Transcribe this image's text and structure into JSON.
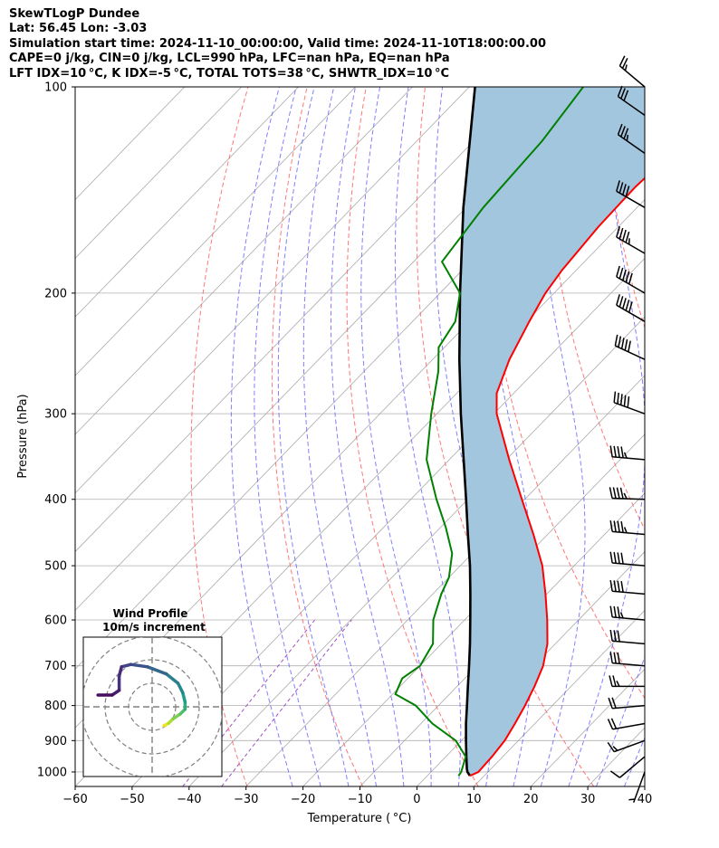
{
  "header": {
    "line1": "SkewTLogP Dundee",
    "line2": "Lat: 56.45   Lon: -3.03",
    "line3": "Simulation start time: 2024-11-10_00:00:00, Valid time: 2024-11-10T18:00:00.00",
    "line4": "CAPE=0 j/kg, CIN=0 j/kg, LCL=990 hPa, LFC=nan hPa, EQ=nan hPa",
    "line5": "LFT IDX=10 °C, K IDX=-5 °C, TOTAL TOTS=38 °C, SHWTR_IDX=10 °C"
  },
  "chart_data": {
    "type": "line",
    "xlabel": "Temperature ( °C)",
    "ylabel": "Pressure (hPa)",
    "xlim": [
      -60,
      40
    ],
    "ylim": [
      1050,
      100
    ],
    "x_ticks": [
      -60,
      -50,
      -40,
      -30,
      -20,
      -10,
      0,
      10,
      20,
      30,
      40
    ],
    "y_ticks": [
      1000,
      900,
      800,
      700,
      600,
      500,
      400,
      300,
      200,
      100
    ],
    "y_scale": "log",
    "grid": true,
    "colors": {
      "temperature": "#ff0000",
      "dewpoint": "#008000",
      "parcel": "#000000",
      "cape_fill": "#a3c6df",
      "dry_adiabat": "#ff6060",
      "moist_adiabat": "#6060ff",
      "mixing_ratio": "#a050c0",
      "isotherm": "#aaaaaa"
    },
    "series": [
      {
        "key": "temperature",
        "p": [
          1013,
          1000,
          950,
          900,
          850,
          800,
          750,
          700,
          650,
          600,
          550,
          500,
          450,
          400,
          350,
          300,
          280,
          250,
          220,
          200,
          185,
          160,
          140,
          120,
          110,
          100
        ],
        "value": [
          7.5,
          8.3,
          8.1,
          7.6,
          6.5,
          5.2,
          3.6,
          1.6,
          -1.4,
          -5.5,
          -10.2,
          -15.6,
          -22.5,
          -30.5,
          -39.5,
          -49.5,
          -53,
          -56.5,
          -59.5,
          -61.5,
          -62.5,
          -63.5,
          -63.8,
          -63.0,
          -62.0,
          -61.0
        ]
      },
      {
        "key": "dewpoint",
        "p": [
          1013,
          1000,
          950,
          900,
          850,
          800,
          770,
          730,
          700,
          650,
          600,
          550,
          520,
          480,
          440,
          400,
          350,
          300,
          260,
          240,
          220,
          200,
          180,
          150,
          120,
          100
        ],
        "value": [
          5.5,
          5.3,
          3.5,
          -1.0,
          -8.0,
          -14.0,
          -19.5,
          -21.0,
          -20.0,
          -21.5,
          -25.5,
          -28.5,
          -30.0,
          -33.5,
          -39.0,
          -45.5,
          -54.0,
          -61.0,
          -67.0,
          -71.0,
          -72.5,
          -76.5,
          -85.0,
          -87.0,
          -88.0,
          -90.0
        ]
      },
      {
        "key": "parcel",
        "p": [
          1013,
          1000,
          990,
          950,
          900,
          850,
          800,
          750,
          700,
          650,
          600,
          550,
          500,
          450,
          400,
          350,
          300,
          250,
          200,
          150,
          100
        ],
        "value": [
          7.5,
          6.4,
          5.8,
          3.6,
          0.8,
          -2.1,
          -5.0,
          -8.1,
          -11.4,
          -15.0,
          -19.0,
          -23.4,
          -28.3,
          -34.0,
          -40.3,
          -47.5,
          -55.8,
          -65.3,
          -76.5,
          -90.5,
          -109.0
        ]
      }
    ],
    "wind_barbs": {
      "p": [
        1000,
        950,
        900,
        850,
        800,
        750,
        700,
        650,
        600,
        550,
        500,
        450,
        400,
        350,
        300,
        250,
        220,
        200,
        175,
        150,
        125,
        110,
        100
      ],
      "speed_kt": [
        5,
        10,
        15,
        20,
        20,
        25,
        30,
        30,
        35,
        40,
        40,
        45,
        45,
        45,
        50,
        50,
        50,
        50,
        45,
        40,
        35,
        30,
        25
      ],
      "dir_deg": [
        200,
        230,
        250,
        260,
        265,
        270,
        275,
        275,
        275,
        275,
        275,
        275,
        272,
        275,
        290,
        295,
        300,
        300,
        300,
        300,
        305,
        305,
        310
      ]
    },
    "hodograph": {
      "title": "Wind Profile",
      "subtitle": "10m/s increment",
      "u": [
        5,
        7,
        9,
        12,
        14,
        14,
        13,
        11,
        6,
        -2,
        -9,
        -13,
        -14,
        -14,
        -17,
        -23
      ],
      "v": [
        -8,
        -7,
        -5,
        -3,
        -1,
        2,
        6,
        10,
        14,
        17,
        18,
        17,
        13,
        7,
        5,
        5
      ],
      "colors": [
        "#e9e51f",
        "#b0dd2f",
        "#7ad151",
        "#4fc069",
        "#2fae7c",
        "#209b85",
        "#23888e",
        "#2c7d8e",
        "#33658d",
        "#3b528b",
        "#414487",
        "#472b7a",
        "#46327e",
        "#471d6c",
        "#450f5d",
        "#440154"
      ]
    }
  }
}
